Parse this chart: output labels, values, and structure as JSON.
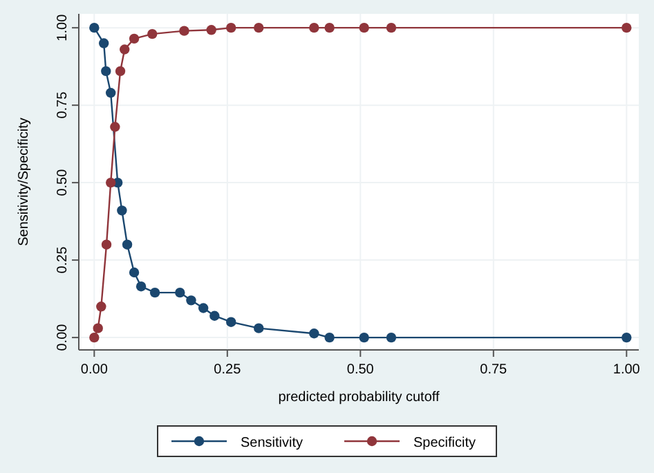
{
  "chart_data": {
    "type": "line",
    "xlabel": "predicted probability cutoff",
    "ylabel": "Sensitivity/Specificity",
    "xlim": [
      -0.029,
      1.023
    ],
    "ylim": [
      -0.04,
      1.045
    ],
    "xticks": [
      {
        "value": 0,
        "label": "0.00"
      },
      {
        "value": 0.25,
        "label": "0.25"
      },
      {
        "value": 0.5,
        "label": "0.50"
      },
      {
        "value": 0.75,
        "label": "0.75"
      },
      {
        "value": 1,
        "label": "1.00"
      }
    ],
    "yticks": [
      {
        "value": 0,
        "label": "0.00"
      },
      {
        "value": 0.25,
        "label": "0.25"
      },
      {
        "value": 0.5,
        "label": "0.50"
      },
      {
        "value": 0.75,
        "label": "0.75"
      },
      {
        "value": 1,
        "label": "1.00"
      }
    ],
    "grid": true,
    "legend": "bottom",
    "marker": "circle",
    "line_style": "solid",
    "series": [
      {
        "name": "Sensitivity",
        "color": "#1a476f",
        "x": [
          0,
          0.018,
          0.022,
          0.031,
          0.044,
          0.052,
          0.062,
          0.075,
          0.088,
          0.114,
          0.161,
          0.182,
          0.205,
          0.226,
          0.257,
          0.309,
          0.413,
          0.442,
          0.507,
          0.558,
          1
        ],
        "values": [
          1,
          0.95,
          0.86,
          0.79,
          0.5,
          0.41,
          0.3,
          0.21,
          0.165,
          0.145,
          0.145,
          0.12,
          0.095,
          0.07,
          0.05,
          0.03,
          0.013,
          0,
          0,
          0,
          0
        ]
      },
      {
        "name": "Specificity",
        "color": "#90353b",
        "x": [
          0,
          0.007,
          0.013,
          0.023,
          0.031,
          0.039,
          0.049,
          0.057,
          0.075,
          0.109,
          0.169,
          0.22,
          0.257,
          0.309,
          0.413,
          0.442,
          0.507,
          0.558,
          1
        ],
        "values": [
          0,
          0.03,
          0.1,
          0.3,
          0.5,
          0.68,
          0.86,
          0.93,
          0.965,
          0.98,
          0.99,
          0.993,
          1,
          1,
          1,
          1,
          1,
          1,
          1
        ]
      }
    ]
  }
}
